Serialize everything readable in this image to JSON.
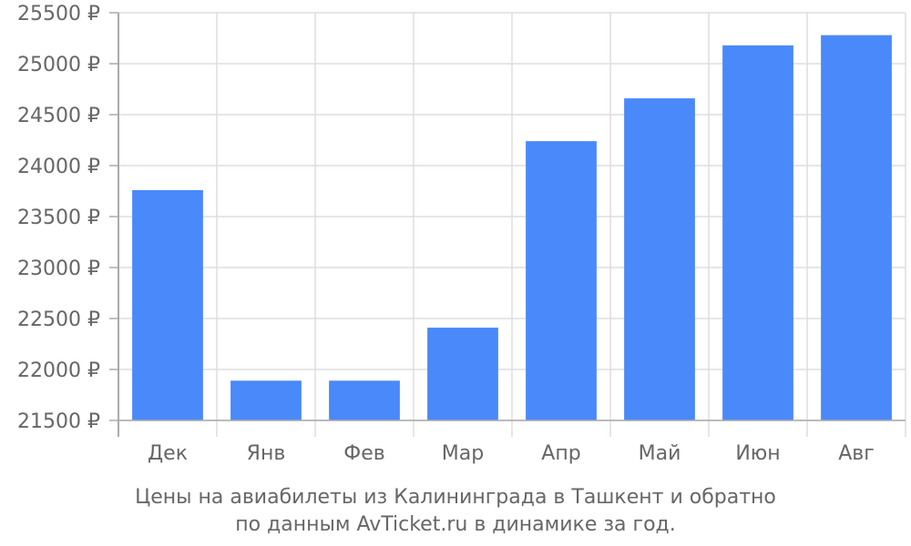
{
  "caption": {
    "line1": "Цены на авиабилеты из Калининграда в Ташкент и обратно",
    "line2": "по данным AvTicket.ru в динамике за год."
  },
  "colors": {
    "bar": "#4a89fa",
    "grid": "#dddddd",
    "axis": "#aaaaaa",
    "text": "#666666"
  },
  "chart_data": {
    "type": "bar",
    "categories": [
      "Дек",
      "Янв",
      "Фев",
      "Мар",
      "Апр",
      "Май",
      "Июн",
      "Авг"
    ],
    "values": [
      23760,
      21890,
      21890,
      22410,
      24240,
      24660,
      25180,
      25280
    ],
    "ylim": [
      21500,
      25500
    ],
    "yticks": [
      21500,
      22000,
      22500,
      23000,
      23500,
      24000,
      24500,
      25000,
      25500
    ],
    "ytick_labels": [
      "21500 ₽",
      "22000 ₽",
      "22500 ₽",
      "23000 ₽",
      "23500 ₽",
      "24000 ₽",
      "24500 ₽",
      "25000 ₽",
      "25500 ₽"
    ],
    "grid": true,
    "legend": "none"
  }
}
